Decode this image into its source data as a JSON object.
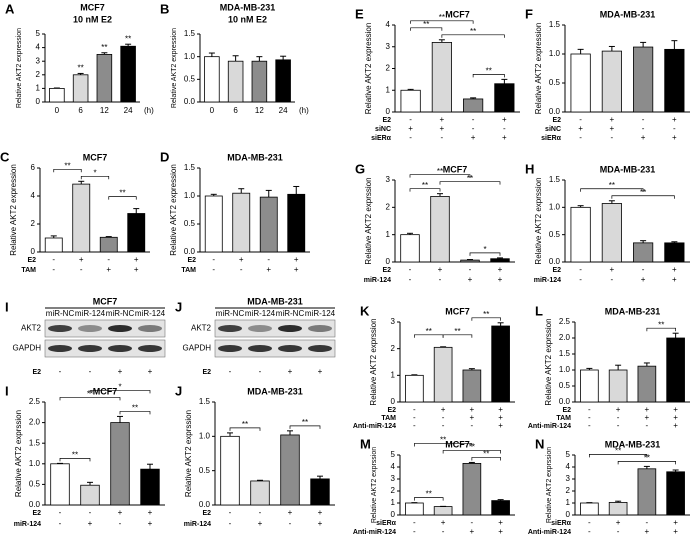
{
  "chart_data": [
    {
      "type": "bar",
      "panel": "A",
      "title": "MCF7",
      "subtitle": "10 nM E2",
      "ylabel": "Relative AKT2 expression",
      "categories": [
        "0",
        "6",
        "12",
        "24"
      ],
      "x_unit": "(h)",
      "values": [
        1,
        2,
        3.5,
        4.1
      ],
      "errors": [
        0.03,
        0.1,
        0.12,
        0.15
      ],
      "colors": [
        "#ffffff",
        "#d9d9d9",
        "#8c8c8c",
        "#000000"
      ],
      "ylim": [
        0,
        5
      ],
      "yticks": [
        0,
        1,
        2,
        3,
        4,
        5
      ],
      "annotations": [
        "**",
        "**",
        "**"
      ]
    },
    {
      "type": "bar",
      "panel": "B",
      "title": "MDA-MB-231",
      "subtitle": "10 nM E2",
      "ylabel": "Relative AKT2 expression",
      "categories": [
        "0",
        "6",
        "12",
        "24"
      ],
      "x_unit": "(h)",
      "values": [
        1.0,
        0.9,
        0.9,
        0.93
      ],
      "errors": [
        0.08,
        0.12,
        0.1,
        0.08
      ],
      "colors": [
        "#ffffff",
        "#d9d9d9",
        "#8c8c8c",
        "#000000"
      ],
      "ylim": [
        0,
        1.5
      ],
      "yticks": [
        {
          "value": 0,
          "label": "0.0"
        },
        0.5,
        {
          "value": 1,
          "label": "1.0"
        },
        1.5
      ],
      "annotations": []
    },
    {
      "type": "bar",
      "panel": "C",
      "title": "MCF7",
      "ylabel": "Relative AKT2 expression",
      "values": [
        1,
        4.85,
        1.05,
        2.75
      ],
      "errors": [
        0.15,
        0.2,
        0.05,
        0.35
      ],
      "colors": [
        "#ffffff",
        "#d9d9d9",
        "#8c8c8c",
        "#000000"
      ],
      "ylim": [
        0,
        6
      ],
      "yticks": [
        0,
        2,
        4,
        6
      ],
      "annotations": [
        "**",
        "*",
        "**"
      ],
      "conditions": [
        {
          "name": "E2",
          "signs": [
            "-",
            "+",
            "-",
            "+"
          ]
        },
        {
          "name": "TAM",
          "signs": [
            "-",
            "-",
            "+",
            "+"
          ]
        }
      ]
    },
    {
      "type": "bar",
      "panel": "D",
      "title": "MDA-MB-231",
      "ylabel": "Relative AKT2 expression",
      "values": [
        1.0,
        1.05,
        0.98,
        1.03
      ],
      "errors": [
        0.03,
        0.08,
        0.12,
        0.14
      ],
      "colors": [
        "#ffffff",
        "#d9d9d9",
        "#8c8c8c",
        "#000000"
      ],
      "ylim": [
        0,
        1.5
      ],
      "yticks": [
        {
          "value": 0,
          "label": "0.0"
        },
        0.5,
        {
          "value": 1,
          "label": "1.0"
        },
        1.5
      ],
      "annotations": [],
      "conditions": [
        {
          "name": "E2",
          "signs": [
            "-",
            "+",
            "-",
            "+"
          ]
        },
        {
          "name": "TAM",
          "signs": [
            "-",
            "-",
            "+",
            "+"
          ]
        }
      ]
    },
    {
      "type": "bar",
      "panel": "E",
      "title": "MCF7",
      "ylabel": "Relative AKT2 expression",
      "values": [
        1.0,
        3.2,
        0.6,
        1.3
      ],
      "errors": [
        0.04,
        0.12,
        0.05,
        0.2
      ],
      "colors": [
        "#ffffff",
        "#d9d9d9",
        "#8c8c8c",
        "#000000"
      ],
      "ylim": [
        0,
        4
      ],
      "yticks": [
        0,
        1,
        2,
        3,
        4
      ],
      "annotations": [
        "**",
        "**",
        "**",
        "**"
      ],
      "conditions": [
        {
          "name": "E2",
          "signs": [
            "-",
            "+",
            "-",
            "+"
          ]
        },
        {
          "name": "siNC",
          "signs": [
            "+",
            "+",
            "-",
            "-"
          ]
        },
        {
          "name": "siERα",
          "signs": [
            "-",
            "-",
            "+",
            "+"
          ]
        }
      ]
    },
    {
      "type": "bar",
      "panel": "F",
      "title": "MDA-MB-231",
      "ylabel": "Relative AKT2 expression",
      "values": [
        1.0,
        1.05,
        1.12,
        1.08
      ],
      "errors": [
        0.08,
        0.08,
        0.08,
        0.15
      ],
      "colors": [
        "#ffffff",
        "#d9d9d9",
        "#8c8c8c",
        "#000000"
      ],
      "ylim": [
        0,
        1.5
      ],
      "yticks": [
        {
          "value": 0,
          "label": "0.0"
        },
        0.5,
        {
          "value": 1,
          "label": "1.0"
        },
        1.5
      ],
      "annotations": [],
      "conditions": [
        {
          "name": "E2",
          "signs": [
            "-",
            "+",
            "-",
            "+"
          ]
        },
        {
          "name": "siNC",
          "signs": [
            "+",
            "+",
            "-",
            "-"
          ]
        },
        {
          "name": "siERα",
          "signs": [
            "-",
            "-",
            "+",
            "+"
          ]
        }
      ]
    },
    {
      "type": "bar",
      "panel": "G",
      "title": "MCF7",
      "ylabel": "Relative AKT2 exprssion",
      "values": [
        1.0,
        2.4,
        0.07,
        0.12
      ],
      "errors": [
        0.05,
        0.1,
        0.02,
        0.03
      ],
      "colors": [
        "#ffffff",
        "#d9d9d9",
        "#8c8c8c",
        "#000000"
      ],
      "ylim": [
        0,
        3
      ],
      "yticks": [
        0,
        1,
        2,
        3
      ],
      "annotations": [
        "**",
        "**",
        "**",
        "*"
      ],
      "conditions": [
        {
          "name": "E2",
          "signs": [
            "-",
            "+",
            "-",
            "+"
          ]
        },
        {
          "name": "miR-124",
          "signs": [
            "-",
            "-",
            "+",
            "+"
          ]
        }
      ]
    },
    {
      "type": "bar",
      "panel": "H",
      "title": "MDA-MB-231",
      "ylabel": "Relative AKT2 exprssion",
      "values": [
        1.0,
        1.07,
        0.35,
        0.35
      ],
      "errors": [
        0.03,
        0.05,
        0.04,
        0.02
      ],
      "colors": [
        "#ffffff",
        "#d9d9d9",
        "#8c8c8c",
        "#000000"
      ],
      "ylim": [
        0,
        1.5
      ],
      "yticks": [
        {
          "value": 0,
          "label": "0.0"
        },
        0.5,
        {
          "value": 1,
          "label": "1.0"
        },
        1.5
      ],
      "annotations": [
        "**",
        "**"
      ],
      "conditions": [
        {
          "name": "E2",
          "signs": [
            "-",
            "+",
            "-",
            "+"
          ]
        },
        {
          "name": "miR-124",
          "signs": [
            "-",
            "-",
            "+",
            "+"
          ]
        }
      ]
    },
    {
      "type": "bar",
      "panel": "I",
      "title": "MCF7",
      "ylabel": "Relative AKT2 exprssion",
      "values": [
        1.0,
        0.48,
        2.0,
        0.87
      ],
      "errors": [
        0.01,
        0.07,
        0.15,
        0.12
      ],
      "colors": [
        "#ffffff",
        "#d9d9d9",
        "#8c8c8c",
        "#000000"
      ],
      "ylim": [
        0,
        2.5
      ],
      "yticks": [
        {
          "value": 0,
          "label": "0.0"
        },
        0.5,
        {
          "value": 1,
          "label": "1.0"
        },
        1.5,
        {
          "value": 2,
          "label": "2.0"
        },
        2.5
      ],
      "annotations": [
        "**",
        "**",
        "*",
        "**"
      ],
      "conditions": [
        {
          "name": "E2",
          "signs": [
            "-",
            "-",
            "+",
            "+"
          ]
        },
        {
          "name": "miR-124",
          "signs": [
            "-",
            "+",
            "-",
            "+"
          ]
        }
      ],
      "blot": {
        "title": "MCF7",
        "lanes": [
          "miR-NC",
          "miR-124",
          "miR-NC",
          "miR-124"
        ],
        "rows": [
          "AKT2",
          "GAPDH"
        ],
        "conditions": [
          {
            "name": "E2",
            "signs": [
              "-",
              "-",
              "+",
              "+"
            ]
          }
        ]
      }
    },
    {
      "type": "bar",
      "panel": "J",
      "title": "MDA-MB-231",
      "ylabel": "Relative AKT2 exprssion",
      "values": [
        1.0,
        0.35,
        1.02,
        0.38
      ],
      "errors": [
        0.05,
        0.01,
        0.06,
        0.04
      ],
      "colors": [
        "#ffffff",
        "#d9d9d9",
        "#8c8c8c",
        "#000000"
      ],
      "ylim": [
        0,
        1.5
      ],
      "yticks": [
        {
          "value": 0,
          "label": "0.0"
        },
        0.5,
        {
          "value": 1,
          "label": "1.0"
        },
        1.5
      ],
      "annotations": [
        "**",
        "**"
      ],
      "conditions": [
        {
          "name": "E2",
          "signs": [
            "-",
            "-",
            "+",
            "+"
          ]
        },
        {
          "name": "miR-124",
          "signs": [
            "-",
            "+",
            "-",
            "+"
          ]
        }
      ],
      "blot": {
        "title": "MDA-MB-231",
        "lanes": [
          "miR-NC",
          "miR-124",
          "miR-NC",
          "miR-124"
        ],
        "rows": [
          "AKT2",
          "GAPDH"
        ],
        "conditions": [
          {
            "name": "E2",
            "signs": [
              "-",
              "-",
              "+",
              "+"
            ]
          }
        ]
      }
    },
    {
      "type": "bar",
      "panel": "K",
      "title": "MCF7",
      "ylabel": "Relative AKT2 exprssion",
      "values": [
        1.0,
        2.05,
        1.2,
        2.85
      ],
      "errors": [
        0.02,
        0.02,
        0.05,
        0.12
      ],
      "colors": [
        "#ffffff",
        "#d9d9d9",
        "#8c8c8c",
        "#000000"
      ],
      "ylim": [
        0,
        3
      ],
      "yticks": [
        0,
        1,
        2,
        3
      ],
      "annotations": [
        "**",
        "**",
        "**"
      ],
      "conditions": [
        {
          "name": "E2",
          "signs": [
            "-",
            "+",
            "+",
            "+"
          ]
        },
        {
          "name": "TAM",
          "signs": [
            "-",
            "-",
            "+",
            "+"
          ]
        },
        {
          "name": "Anti-miR-124",
          "signs": [
            "-",
            "-",
            "-",
            "+"
          ]
        }
      ]
    },
    {
      "type": "bar",
      "panel": "L",
      "title": "MDA-MB-231",
      "ylabel": "Relative AKT2 exprssion",
      "values": [
        1.0,
        1.0,
        1.12,
        2.0
      ],
      "errors": [
        0.05,
        0.15,
        0.1,
        0.15
      ],
      "colors": [
        "#ffffff",
        "#d9d9d9",
        "#8c8c8c",
        "#000000"
      ],
      "ylim": [
        0,
        2.5
      ],
      "yticks": [
        {
          "value": 0,
          "label": "0.0"
        },
        0.5,
        {
          "value": 1,
          "label": "1.0"
        },
        1.5,
        {
          "value": 2,
          "label": "2.0"
        },
        2.5
      ],
      "annotations": [
        "**"
      ],
      "conditions": [
        {
          "name": "E2",
          "signs": [
            "-",
            "+",
            "+",
            "+"
          ]
        },
        {
          "name": "TAM",
          "signs": [
            "-",
            "-",
            "+",
            "+"
          ]
        },
        {
          "name": "Anti-miR-124",
          "signs": [
            "-",
            "-",
            "-",
            "+"
          ]
        }
      ]
    },
    {
      "type": "bar",
      "panel": "M",
      "title": "MCF7",
      "ylabel": "Relative AKT2 exprssion",
      "values": [
        1.0,
        0.7,
        4.3,
        1.2
      ],
      "errors": [
        0.03,
        0.02,
        0.08,
        0.08
      ],
      "colors": [
        "#ffffff",
        "#d9d9d9",
        "#8c8c8c",
        "#000000"
      ],
      "ylim": [
        0,
        5
      ],
      "yticks": [
        0,
        1,
        2,
        3,
        4,
        5
      ],
      "annotations": [
        "**",
        "**",
        "**",
        "**"
      ],
      "conditions": [
        {
          "name": "siERα",
          "signs": [
            "-",
            "+",
            "-",
            "+"
          ]
        },
        {
          "name": "Anti-miR-124",
          "signs": [
            "-",
            "-",
            "+",
            "+"
          ]
        }
      ]
    },
    {
      "type": "bar",
      "panel": "N",
      "title": "MDA-MB-231",
      "ylabel": "Relative AKT2 exprssion",
      "values": [
        1.0,
        1.05,
        3.85,
        3.6
      ],
      "errors": [
        0.03,
        0.1,
        0.2,
        0.15
      ],
      "colors": [
        "#ffffff",
        "#d9d9d9",
        "#8c8c8c",
        "#000000"
      ],
      "ylim": [
        0,
        5
      ],
      "yticks": [
        0,
        1,
        2,
        3,
        4,
        5
      ],
      "annotations": [
        "**",
        "**"
      ],
      "conditions": [
        {
          "name": "siERα",
          "signs": [
            "-",
            "+",
            "-",
            "+"
          ]
        },
        {
          "name": "Anti-miR-124",
          "signs": [
            "-",
            "-",
            "+",
            "+"
          ]
        }
      ]
    }
  ]
}
